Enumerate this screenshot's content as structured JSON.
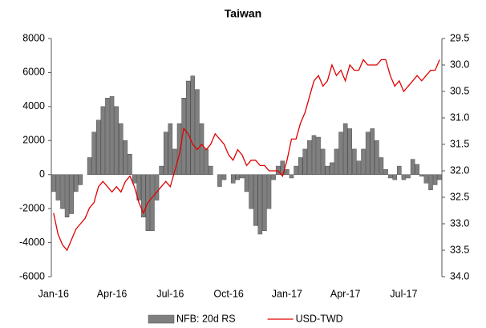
{
  "chart_data": {
    "type": "bar-line",
    "title": "Taiwan",
    "categories": [
      "Jan-16",
      null,
      null,
      null,
      null,
      null,
      null,
      null,
      null,
      null,
      null,
      null,
      null,
      "Apr-16",
      null,
      null,
      null,
      null,
      null,
      null,
      null,
      null,
      null,
      null,
      null,
      null,
      "Jul-16",
      null,
      null,
      null,
      null,
      null,
      null,
      null,
      null,
      null,
      null,
      null,
      null,
      "Oct-16",
      null,
      null,
      null,
      null,
      null,
      null,
      null,
      null,
      null,
      null,
      null,
      null,
      "Jan-17",
      null,
      null,
      null,
      null,
      null,
      null,
      null,
      null,
      null,
      null,
      null,
      null,
      "Apr-17",
      null,
      null,
      null,
      null,
      null,
      null,
      null,
      null,
      null,
      null,
      null,
      null,
      "Jul-17",
      null,
      null,
      null,
      null,
      null,
      null,
      null,
      null
    ],
    "series": [
      {
        "name": "NFB: 20d RS",
        "type": "bar",
        "color": "#7f7f7f",
        "axis": "y",
        "values": [
          -1000,
          -1500,
          -2000,
          -2500,
          -2300,
          -1000,
          -600,
          0,
          1000,
          2500,
          3200,
          4000,
          4500,
          4600,
          4000,
          3000,
          2000,
          1200,
          -500,
          -1500,
          -2500,
          -3300,
          -3300,
          -1500,
          500,
          2500,
          3000,
          1500,
          3000,
          4500,
          5500,
          5800,
          5000,
          3000,
          1500,
          500,
          0,
          -700,
          -300,
          0,
          -500,
          -300,
          -200,
          -1000,
          -2000,
          -3000,
          -3500,
          -3300,
          -2000,
          -300,
          500,
          800,
          300,
          -200,
          500,
          1000,
          1500,
          2000,
          2300,
          2200,
          1500,
          500,
          700,
          1500,
          2500,
          3000,
          2700,
          1500,
          800,
          1500,
          2500,
          2700,
          2000,
          1000,
          300,
          -200,
          -300,
          500,
          -300,
          -200,
          900,
          600,
          -100,
          -500,
          -900,
          -600,
          -300
        ]
      },
      {
        "name": "USD-TWD",
        "type": "line",
        "color": "#e00000",
        "axis": "y2",
        "values": [
          32.8,
          33.2,
          33.4,
          33.5,
          33.3,
          33.1,
          33.0,
          32.9,
          32.7,
          32.6,
          32.3,
          32.2,
          32.3,
          32.4,
          32.3,
          32.4,
          32.2,
          32.1,
          32.3,
          32.6,
          32.8,
          32.6,
          32.5,
          32.4,
          32.3,
          32.2,
          32.3,
          32.0,
          31.7,
          31.2,
          31.3,
          31.5,
          31.6,
          31.5,
          31.6,
          31.5,
          31.3,
          31.4,
          31.5,
          31.7,
          31.8,
          31.6,
          31.7,
          31.9,
          31.8,
          31.8,
          31.9,
          31.9,
          32.0,
          32.0,
          32.0,
          32.1,
          31.8,
          31.4,
          31.4,
          31.1,
          30.9,
          30.6,
          30.3,
          30.2,
          30.4,
          30.3,
          30.0,
          30.2,
          30.1,
          30.3,
          30.0,
          30.1,
          30.1,
          29.9,
          30.0,
          30.0,
          30.0,
          29.9,
          29.9,
          30.2,
          30.4,
          30.3,
          30.5,
          30.4,
          30.3,
          30.2,
          30.3,
          30.2,
          30.1,
          30.1,
          29.9
        ]
      }
    ],
    "ylim": [
      -6000,
      8000
    ],
    "yticks": [
      -6000,
      -4000,
      -2000,
      0,
      2000,
      4000,
      6000,
      8000
    ],
    "y2lim": [
      29.5,
      34
    ],
    "y2_reversed": true,
    "y2ticks": [
      29.5,
      {
        "value": 30,
        "label": "30.0"
      },
      30.5,
      {
        "value": 31,
        "label": "31.0"
      },
      31.5,
      {
        "value": 32,
        "label": "32.0"
      },
      32.5,
      {
        "value": 33,
        "label": "33.0"
      },
      33.5,
      {
        "value": 34,
        "label": "34.0"
      }
    ],
    "legend": "bottom"
  }
}
